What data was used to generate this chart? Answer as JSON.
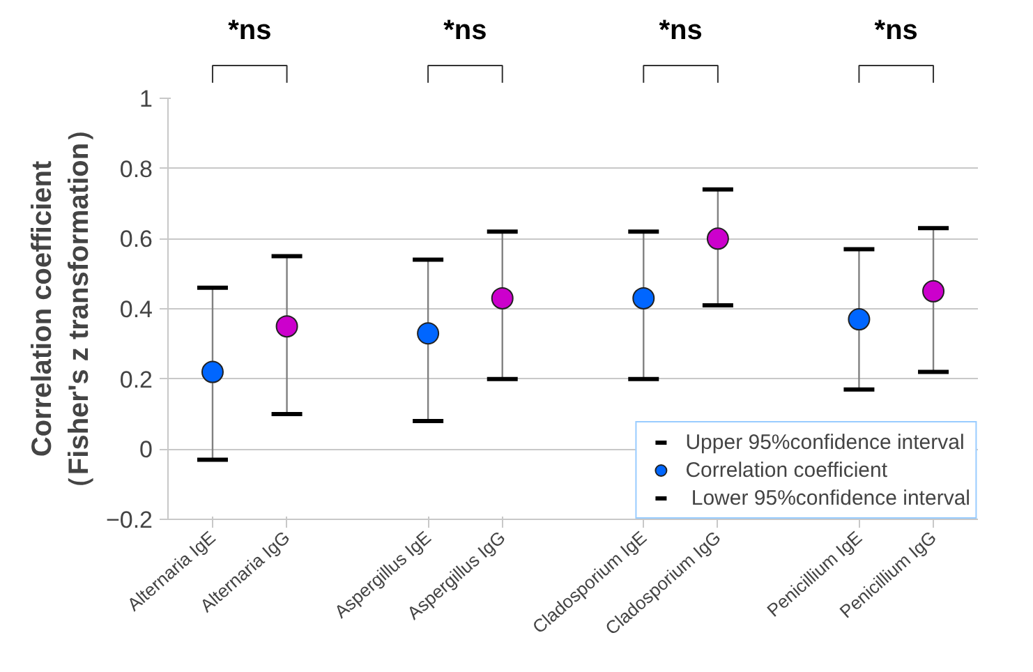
{
  "chart_data": {
    "type": "scatter",
    "ylabel": "Correlation coefficient\n（Fisher's z transformation）",
    "categories": [
      "Alternaria IgE",
      "Alternaria IgG",
      "Aspergillus IgE",
      "Aspergillus IgG",
      "Cladosporium IgE",
      "Cladosporium IgG",
      "Penicillium IgE",
      "Penicillium IgG"
    ],
    "series": [
      {
        "name": "Correlation coefficient",
        "marker": "circle",
        "colors": [
          "#0066ff",
          "#cc00cc",
          "#0066ff",
          "#cc00cc",
          "#0066ff",
          "#cc00cc",
          "#0066ff",
          "#cc00cc"
        ],
        "values": [
          0.22,
          0.35,
          0.33,
          0.43,
          0.43,
          0.6,
          0.37,
          0.45
        ],
        "errors": [
          [
            -0.03,
            0.46
          ],
          [
            0.1,
            0.55
          ],
          [
            0.08,
            0.54
          ],
          [
            0.2,
            0.62
          ],
          [
            0.2,
            0.62
          ],
          [
            0.41,
            0.74
          ],
          [
            0.17,
            0.57
          ],
          [
            0.22,
            0.63
          ]
        ]
      }
    ],
    "ylim": [
      -0.2,
      1
    ],
    "yticks": [
      -0.2,
      0,
      0.2,
      0.4,
      0.6,
      0.8,
      1
    ],
    "grid": "y",
    "legend": "bottom right",
    "annotations": [
      "*ns",
      "*ns",
      "*ns",
      "*ns",
      "Upper 95%confidence interval",
      " Lower 95%confidence interval"
    ]
  }
}
